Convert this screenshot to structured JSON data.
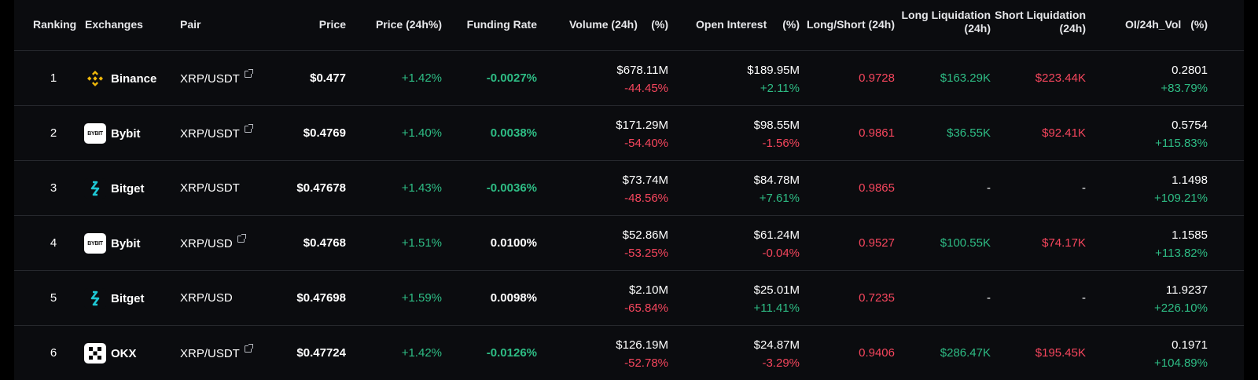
{
  "colors": {
    "green": "#2ebd85",
    "red": "#f6465d",
    "background": "#0b0c0f",
    "binance_yellow": "#f0b90b",
    "bitget_cyan": "#1fc7d4"
  },
  "headers": {
    "ranking": "Ranking",
    "exchanges": "Exchanges",
    "pair": "Pair",
    "price": "Price",
    "price_change": "Price (24h%)",
    "funding_rate": "Funding Rate",
    "volume": "Volume (24h)",
    "volume_pct": "(%)",
    "open_interest": "Open Interest",
    "oi_pct": "(%)",
    "long_short": "Long/Short (24h)",
    "long_liq_1": "Long Liquidation",
    "long_liq_2": "(24h)",
    "short_liq_1": "Short Liquidation",
    "short_liq_2": "(24h)",
    "oi_vol": "OI/24h_Vol",
    "oi_vol_pct": "(%)"
  },
  "rows": [
    {
      "rank": "1",
      "exchange": "Binance",
      "logo": "binance-logo-icon",
      "pair": "XRP/USDT",
      "link": true,
      "price": "$0.477",
      "change": "+1.42%",
      "funding": "-0.0027%",
      "funding_color": "green",
      "volume": "$678.11M",
      "volume_pct": "-44.45%",
      "volume_pct_color": "red",
      "oi": "$189.95M",
      "oi_pct": "+2.11%",
      "oi_pct_color": "green",
      "ls": "0.9728",
      "long_liq": "$163.29K",
      "long_liq_color": "green",
      "short_liq": "$223.44K",
      "short_liq_color": "red",
      "oi_vol": "0.2801",
      "oi_vol_pct": "+83.79%"
    },
    {
      "rank": "2",
      "exchange": "Bybit",
      "logo": "bybit-logo-icon",
      "logo_text": "BYBIT",
      "pair": "XRP/USDT",
      "link": true,
      "price": "$0.4769",
      "change": "+1.40%",
      "funding": "0.0038%",
      "funding_color": "green",
      "volume": "$171.29M",
      "volume_pct": "-54.40%",
      "volume_pct_color": "red",
      "oi": "$98.55M",
      "oi_pct": "-1.56%",
      "oi_pct_color": "red",
      "ls": "0.9861",
      "long_liq": "$36.55K",
      "long_liq_color": "green",
      "short_liq": "$92.41K",
      "short_liq_color": "red",
      "oi_vol": "0.5754",
      "oi_vol_pct": "+115.83%"
    },
    {
      "rank": "3",
      "exchange": "Bitget",
      "logo": "bitget-logo-icon",
      "pair": "XRP/USDT",
      "link": false,
      "price": "$0.47678",
      "change": "+1.43%",
      "funding": "-0.0036%",
      "funding_color": "green",
      "volume": "$73.74M",
      "volume_pct": "-48.56%",
      "volume_pct_color": "red",
      "oi": "$84.78M",
      "oi_pct": "+7.61%",
      "oi_pct_color": "green",
      "ls": "0.9865",
      "long_liq": "-",
      "long_liq_color": "white",
      "short_liq": "-",
      "short_liq_color": "white",
      "oi_vol": "1.1498",
      "oi_vol_pct": "+109.21%"
    },
    {
      "rank": "4",
      "exchange": "Bybit",
      "logo": "bybit-logo-icon",
      "logo_text": "BYBIT",
      "pair": "XRP/USD",
      "link": true,
      "price": "$0.4768",
      "change": "+1.51%",
      "funding": "0.0100%",
      "funding_color": "white",
      "volume": "$52.86M",
      "volume_pct": "-53.25%",
      "volume_pct_color": "red",
      "oi": "$61.24M",
      "oi_pct": "-0.04%",
      "oi_pct_color": "red",
      "ls": "0.9527",
      "long_liq": "$100.55K",
      "long_liq_color": "green",
      "short_liq": "$74.17K",
      "short_liq_color": "red",
      "oi_vol": "1.1585",
      "oi_vol_pct": "+113.82%"
    },
    {
      "rank": "5",
      "exchange": "Bitget",
      "logo": "bitget-logo-icon",
      "pair": "XRP/USD",
      "link": false,
      "price": "$0.47698",
      "change": "+1.59%",
      "funding": "0.0098%",
      "funding_color": "white",
      "volume": "$2.10M",
      "volume_pct": "-65.84%",
      "volume_pct_color": "red",
      "oi": "$25.01M",
      "oi_pct": "+11.41%",
      "oi_pct_color": "green",
      "ls": "0.7235",
      "long_liq": "-",
      "long_liq_color": "white",
      "short_liq": "-",
      "short_liq_color": "white",
      "oi_vol": "11.9237",
      "oi_vol_pct": "+226.10%"
    },
    {
      "rank": "6",
      "exchange": "OKX",
      "logo": "okx-logo-icon",
      "pair": "XRP/USDT",
      "link": true,
      "price": "$0.47724",
      "change": "+1.42%",
      "funding": "-0.0126%",
      "funding_color": "green",
      "volume": "$126.19M",
      "volume_pct": "-52.78%",
      "volume_pct_color": "red",
      "oi": "$24.87M",
      "oi_pct": "-3.29%",
      "oi_pct_color": "red",
      "ls": "0.9406",
      "long_liq": "$286.47K",
      "long_liq_color": "green",
      "short_liq": "$195.45K",
      "short_liq_color": "red",
      "oi_vol": "0.1971",
      "oi_vol_pct": "+104.89%"
    }
  ]
}
